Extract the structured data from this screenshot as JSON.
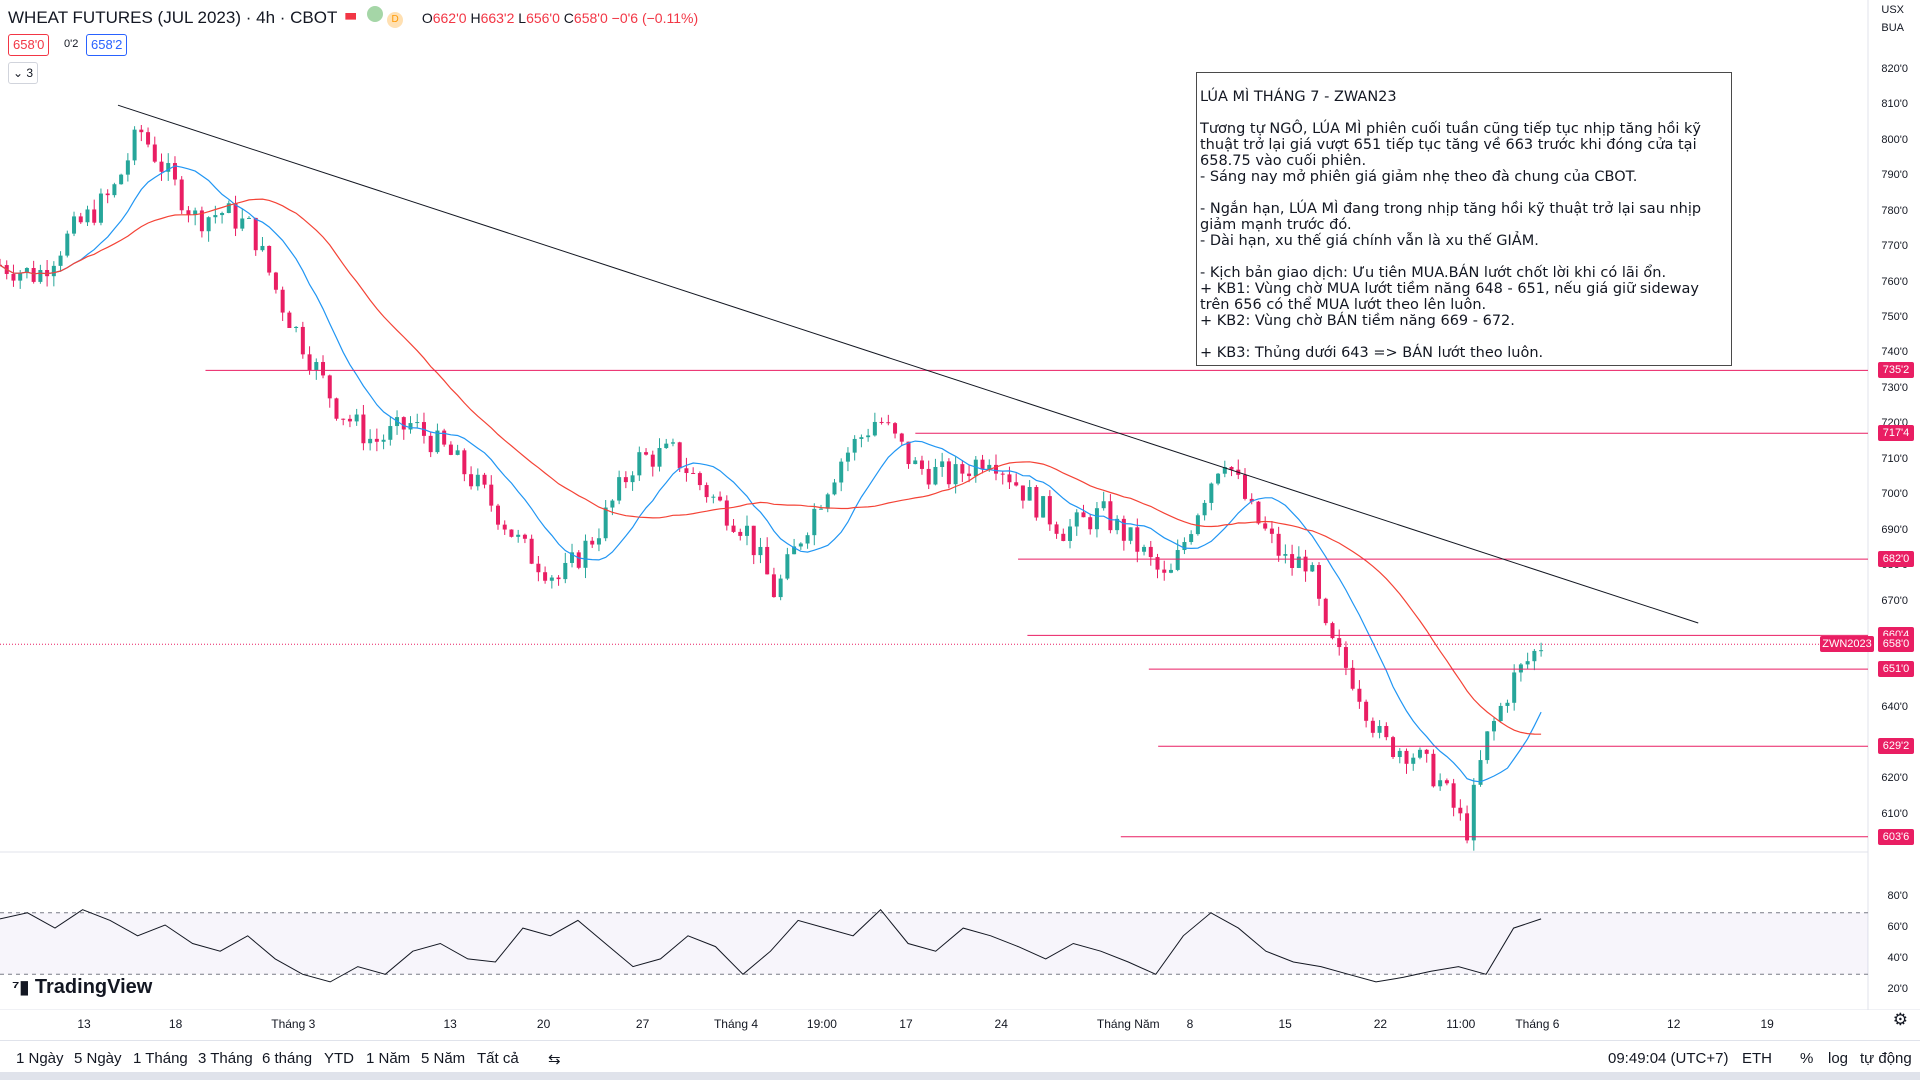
{
  "header": {
    "symbol": "WHEAT FUTURES (JUL 2023) · 4h · CBOT",
    "badge_d": "D",
    "ohlc": {
      "o": "662'0",
      "h": "663'2",
      "l": "656'0",
      "c": "658'0",
      "change": "−0'6 (−0.11%)"
    },
    "bid": "658'0",
    "spread": "0'2",
    "ask": "658'2",
    "collapse_count": "3"
  },
  "topright": {
    "currency": "USX",
    "unit": "BUA"
  },
  "note": {
    "text": "LÚA MÌ THÁNG 7 - ZWAN23\n\nTương tự NGÔ, LÚA MÌ phiên cuối tuần cũng tiếp tục nhịp tăng hồi kỹ thuật trở lại giá vượt 651 tiếp tục tăng về 663 trước khi đóng cửa tại 658.75 vào cuối phiên.\n- Sáng nay mở phiên giá giảm nhẹ theo đà chung của CBOT.\n\n- Ngắn hạn, LÚA MÌ đang trong nhịp tăng hồi kỹ thuật trở lại sau nhịp giảm mạnh trước đó.\n- Dài hạn, xu thế giá chính vẫn là xu thế GIẢM.\n\n- Kịch bản giao dịch: Ưu tiên MUA.BÁN lướt chốt lời khi có lãi ổn.\n+ KB1: Vùng chờ MUA lướt tiềm năng 648 - 651, nếu giá giữ sideway trên 656 có thể MUA lướt theo lên luôn.\n+ KB2: Vùng chờ BÁN tiềm năng 669 - 672.\n\n+ KB3: Thủng dưới 643 => BÁN lướt theo luôn."
  },
  "price_axis": [
    "820'0",
    "810'0",
    "800'0",
    "790'0",
    "780'0",
    "770'0",
    "760'0",
    "750'0",
    "740'0",
    "730'0",
    "720'0",
    "710'0",
    "700'0",
    "690'0",
    "680'0",
    "670'0",
    "660'0",
    "650'0",
    "640'0",
    "630'0",
    "620'0",
    "610'0"
  ],
  "level_tags": [
    "735'2",
    "717'4",
    "682'0",
    "660'4",
    "658'0",
    "651'0",
    "629'2",
    "603'6"
  ],
  "symbol_tag": "ZWN2023",
  "rsi_axis": [
    "80'0",
    "60'0",
    "40'0",
    "20'0"
  ],
  "time_axis": [
    "13",
    "18",
    "Tháng 3",
    "13",
    "20",
    "27",
    "Tháng 4",
    "19:00",
    "17",
    "24",
    "Tháng Năm",
    "8",
    "15",
    "22",
    "11:00",
    "Tháng 6",
    "12",
    "19"
  ],
  "logo": "TradingView",
  "bottom": {
    "ranges": [
      "1 Ngày",
      "5 Ngày",
      "1 Tháng",
      "3 Tháng",
      "6 tháng",
      "YTD",
      "1 Năm",
      "5 Năm",
      "Tất cả"
    ],
    "clock": "09:49:04 (UTC+7)",
    "session": "ETH",
    "pct": "%",
    "log": "log",
    "auto": "tự động"
  },
  "colors": {
    "up": "#26a69a",
    "down": "#e91e63",
    "ma_fast": "#2196f3",
    "ma_slow": "#f44336",
    "level": "#e91e63",
    "trend": "#131722"
  },
  "chart_data": {
    "type": "candlestick",
    "ylim": [
      600,
      825
    ],
    "levels": [
      735.25,
      717.5,
      682.0,
      660.5,
      651.0,
      629.25,
      603.75
    ],
    "last": 658.0,
    "trendline": [
      [
        0.0,
        810.0
      ],
      [
        0.877,
        664.0
      ]
    ],
    "close_path": [
      [
        0,
        765
      ],
      [
        0.02,
        762
      ],
      [
        0.04,
        775
      ],
      [
        0.06,
        785
      ],
      [
        0.075,
        803
      ],
      [
        0.09,
        790
      ],
      [
        0.105,
        778
      ],
      [
        0.12,
        780
      ],
      [
        0.135,
        775
      ],
      [
        0.15,
        755
      ],
      [
        0.165,
        740
      ],
      [
        0.18,
        725
      ],
      [
        0.2,
        715
      ],
      [
        0.22,
        720
      ],
      [
        0.24,
        712
      ],
      [
        0.26,
        700
      ],
      [
        0.28,
        685
      ],
      [
        0.3,
        676
      ],
      [
        0.32,
        690
      ],
      [
        0.34,
        710
      ],
      [
        0.36,
        712
      ],
      [
        0.38,
        700
      ],
      [
        0.4,
        690
      ],
      [
        0.415,
        672
      ],
      [
        0.43,
        690
      ],
      [
        0.45,
        710
      ],
      [
        0.47,
        722
      ],
      [
        0.49,
        708
      ],
      [
        0.51,
        705
      ],
      [
        0.53,
        712
      ],
      [
        0.55,
        700
      ],
      [
        0.57,
        690
      ],
      [
        0.59,
        695
      ],
      [
        0.61,
        685
      ],
      [
        0.625,
        675
      ],
      [
        0.64,
        695
      ],
      [
        0.655,
        712
      ],
      [
        0.67,
        695
      ],
      [
        0.69,
        680
      ],
      [
        0.7,
        682
      ],
      [
        0.71,
        660
      ],
      [
        0.725,
        648
      ],
      [
        0.74,
        630
      ],
      [
        0.755,
        628
      ],
      [
        0.77,
        620
      ],
      [
        0.785,
        605
      ],
      [
        0.795,
        630
      ],
      [
        0.81,
        648
      ],
      [
        0.825,
        658
      ]
    ],
    "rsi": [
      66,
      70,
      60,
      72,
      65,
      55,
      62,
      50,
      45,
      55,
      40,
      30,
      25,
      35,
      30,
      45,
      50,
      40,
      38,
      60,
      55,
      65,
      50,
      35,
      40,
      55,
      48,
      30,
      45,
      65,
      60,
      55,
      72,
      50,
      45,
      60,
      55,
      48,
      40,
      50,
      45,
      38,
      30,
      55,
      70,
      60,
      45,
      38,
      35,
      30,
      25,
      28,
      32,
      35,
      30,
      60,
      66
    ]
  }
}
